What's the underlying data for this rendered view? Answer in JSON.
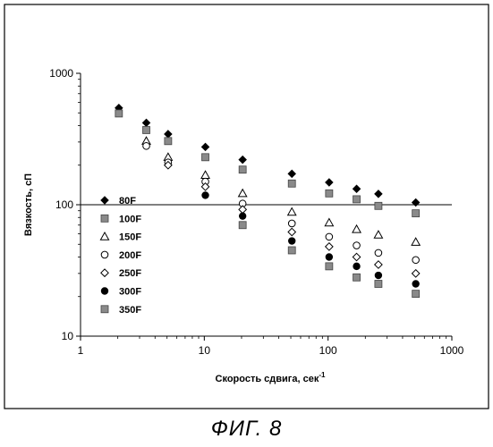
{
  "caption": "ФИГ. 8",
  "chart_data": {
    "type": "scatter",
    "xlabel": "Скорость сдвига, сек",
    "xlabel_sup": "-1",
    "ylabel": "Вязкость, сП",
    "xscale": "log",
    "yscale": "log",
    "xlim": [
      1,
      1000
    ],
    "ylim": [
      10,
      1000
    ],
    "x_tick_labels": [
      "1",
      "10",
      "100",
      "1000"
    ],
    "y_tick_labels": [
      "10",
      "100",
      "1000"
    ],
    "grid": false,
    "legend_position": "left",
    "reference_line": {
      "y": 100
    },
    "series": [
      {
        "name": "80F",
        "marker": "diamond-filled",
        "points": [
          [
            2.04,
            545
          ],
          [
            3.4,
            420
          ],
          [
            5.1,
            345
          ],
          [
            10.2,
            275
          ],
          [
            20.4,
            220
          ],
          [
            51,
            172
          ],
          [
            102,
            148
          ],
          [
            170,
            132
          ],
          [
            255,
            121
          ],
          [
            511,
            104
          ]
        ]
      },
      {
        "name": "100F",
        "marker": "square-gray",
        "points": [
          [
            2.04,
            495
          ],
          [
            3.4,
            370
          ],
          [
            5.1,
            305
          ],
          [
            10.2,
            230
          ],
          [
            20.4,
            185
          ],
          [
            51,
            145
          ],
          [
            102,
            122
          ],
          [
            170,
            110
          ],
          [
            255,
            98
          ],
          [
            511,
            86
          ]
        ]
      },
      {
        "name": "150F",
        "marker": "triangle-open",
        "points": [
          [
            3.4,
            305
          ],
          [
            5.1,
            230
          ],
          [
            10.2,
            168
          ],
          [
            20.4,
            122
          ],
          [
            51,
            88
          ],
          [
            102,
            73
          ],
          [
            170,
            65
          ],
          [
            255,
            59
          ],
          [
            511,
            52
          ]
        ]
      },
      {
        "name": "200F",
        "marker": "circle-open",
        "points": [
          [
            3.4,
            280
          ],
          [
            5.1,
            210
          ],
          [
            10.2,
            150
          ],
          [
            20.4,
            102
          ],
          [
            51,
            72
          ],
          [
            102,
            57
          ],
          [
            170,
            49
          ],
          [
            255,
            43
          ],
          [
            511,
            38
          ]
        ]
      },
      {
        "name": "250F",
        "marker": "diamond-open",
        "points": [
          [
            5.1,
            200
          ],
          [
            10.2,
            137
          ],
          [
            20.4,
            92
          ],
          [
            51,
            62
          ],
          [
            102,
            48
          ],
          [
            170,
            40
          ],
          [
            255,
            35
          ],
          [
            511,
            30
          ]
        ]
      },
      {
        "name": "300F",
        "marker": "circle-filled",
        "points": [
          [
            10.2,
            118
          ],
          [
            20.4,
            82
          ],
          [
            51,
            53
          ],
          [
            102,
            40
          ],
          [
            170,
            34
          ],
          [
            255,
            29
          ],
          [
            511,
            25
          ]
        ]
      },
      {
        "name": "350F",
        "marker": "square-gray",
        "points": [
          [
            20.4,
            70
          ],
          [
            51,
            45
          ],
          [
            102,
            34
          ],
          [
            170,
            28
          ],
          [
            255,
            25
          ],
          [
            511,
            21
          ]
        ]
      }
    ]
  }
}
